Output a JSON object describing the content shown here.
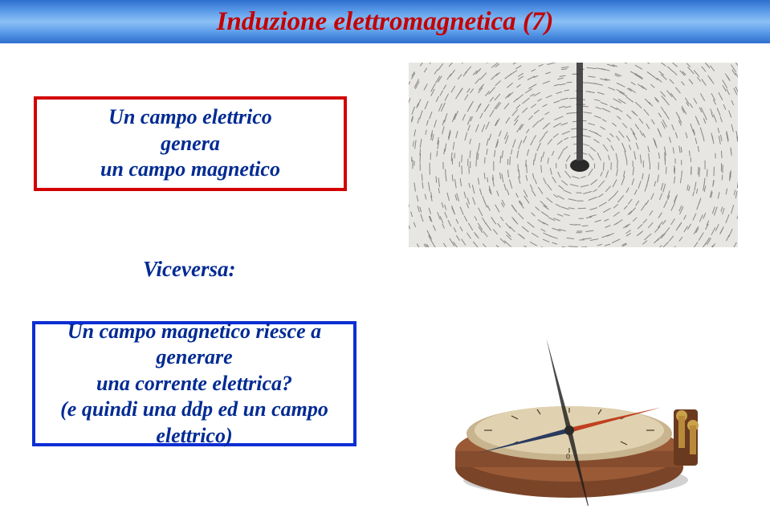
{
  "title": "Induzione elettromagnetica (7)",
  "box1": {
    "line1": "Un campo elettrico",
    "line2": "genera",
    "line3": "un campo magnetico",
    "border_color": "#d20000"
  },
  "viceversa": "Viceversa:",
  "box2": {
    "line1": "Un campo magnetico riesce a generare",
    "line2": "una corrente elettrica?",
    "line3": "(e quindi una ddp ed un campo elettrico)",
    "border_color": "#0b2ed4"
  },
  "colors": {
    "text": "#002a93",
    "title": "#c40000",
    "bg": "#ffffff"
  },
  "image1": {
    "type": "iron-filings-magnetic-field",
    "background": "#e8e6e2",
    "pole_color": "#3a3a3a"
  },
  "image2": {
    "type": "antique-compass-galvanometer",
    "base_color": "#9a5a36",
    "dial_color": "#d8c8a8",
    "needle_north": "#c04020",
    "needle_south": "#2a3a60"
  }
}
